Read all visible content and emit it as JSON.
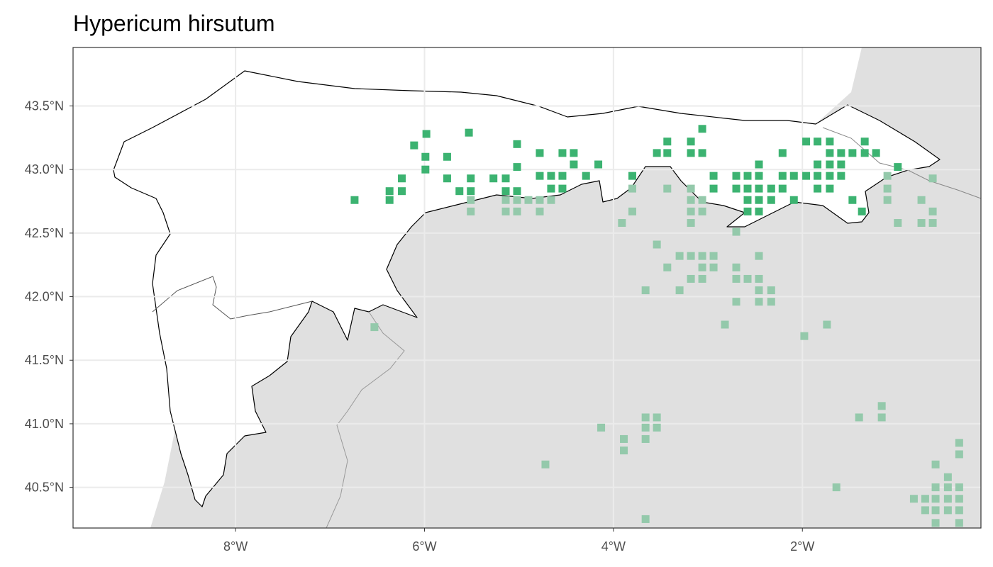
{
  "chart_data": {
    "type": "map",
    "title": "Hypericum hirsutum",
    "xlim": [
      -9.72,
      -0.11
    ],
    "ylim": [
      40.18,
      43.96
    ],
    "xticks": [
      {
        "value": -8,
        "label": "8°W"
      },
      {
        "value": -6,
        "label": "6°W"
      },
      {
        "value": -4,
        "label": "4°W"
      },
      {
        "value": -2,
        "label": "2°W"
      }
    ],
    "yticks": [
      {
        "value": 40.5,
        "label": "40.5°N"
      },
      {
        "value": 41.0,
        "label": "41.0°N"
      },
      {
        "value": 41.5,
        "label": "41.5°N"
      },
      {
        "value": 42.0,
        "label": "42.0°N"
      },
      {
        "value": 42.5,
        "label": "42.5°N"
      },
      {
        "value": 43.0,
        "label": "43.0°N"
      },
      {
        "value": 43.5,
        "label": "43.5°N"
      }
    ],
    "grid": true,
    "series": [
      {
        "color": "#3cb371",
        "x": [
          -6.74,
          -6.37,
          -6.37,
          -6.24,
          -6.24,
          -6.11,
          -5.98,
          -5.99,
          -5.99,
          -5.76,
          -5.76,
          -5.63,
          -5.53,
          -5.51,
          -5.51,
          -5.27,
          -5.14,
          -5.14,
          -5.02,
          -5.02,
          -5.02,
          -4.78,
          -4.78,
          -4.66,
          -4.66,
          -4.54,
          -4.54,
          -4.54,
          -4.42,
          -4.42,
          -4.29,
          -4.16,
          -3.8,
          -3.54,
          -3.43,
          -3.43,
          -3.18,
          -3.18,
          -3.06,
          -3.06,
          -2.94,
          -2.94,
          -2.7,
          -2.7,
          -2.58,
          -2.58,
          -2.58,
          -2.46,
          -2.46,
          -2.46,
          -2.46,
          -2.46,
          -2.58,
          -2.33,
          -2.33,
          -2.21,
          -2.21,
          -2.21,
          -2.09,
          -2.09,
          -1.96,
          -1.96,
          -1.84,
          -1.84,
          -1.84,
          -1.84,
          -1.71,
          -1.71,
          -1.71,
          -1.71,
          -1.71,
          -1.59,
          -1.59,
          -1.59,
          -1.47,
          -1.47,
          -1.34,
          -1.34,
          -1.22,
          -1.37,
          -0.99
        ],
        "y": [
          42.76,
          42.83,
          42.76,
          42.93,
          42.83,
          43.19,
          43.28,
          43.1,
          43.0,
          43.1,
          42.93,
          42.83,
          43.29,
          42.93,
          42.83,
          42.93,
          42.93,
          42.83,
          43.2,
          43.02,
          42.83,
          43.13,
          42.95,
          42.95,
          42.85,
          43.13,
          42.95,
          42.85,
          43.13,
          43.04,
          42.95,
          43.04,
          42.95,
          43.13,
          43.22,
          43.13,
          43.22,
          43.13,
          43.32,
          43.13,
          42.95,
          42.85,
          42.95,
          42.85,
          42.95,
          42.85,
          42.76,
          43.04,
          42.95,
          42.85,
          42.76,
          42.67,
          42.67,
          42.85,
          42.76,
          43.13,
          42.95,
          42.85,
          42.95,
          42.76,
          43.22,
          42.95,
          43.22,
          43.04,
          42.95,
          42.85,
          43.22,
          43.13,
          43.04,
          42.95,
          42.85,
          43.13,
          43.04,
          42.95,
          43.13,
          42.76,
          43.22,
          43.13,
          43.13,
          42.67,
          43.02
        ]
      },
      {
        "color": "#94c9ab",
        "x": [
          -6.53,
          -5.51,
          -5.51,
          -5.14,
          -5.14,
          -5.02,
          -5.02,
          -4.9,
          -4.78,
          -4.78,
          -4.66,
          -3.91,
          -3.8,
          -3.8,
          -3.54,
          -3.43,
          -3.43,
          -3.3,
          -3.3,
          -3.66,
          -3.18,
          -3.18,
          -3.18,
          -3.18,
          -3.18,
          -3.18,
          -3.06,
          -3.06,
          -3.06,
          -3.06,
          -3.06,
          -2.94,
          -2.94,
          -2.7,
          -2.7,
          -2.7,
          -2.7,
          -2.58,
          -2.46,
          -2.46,
          -2.46,
          -2.46,
          -2.33,
          -2.33,
          -2.82,
          -1.98,
          -1.74,
          -1.1,
          -1.1,
          -1.1,
          -0.99,
          -0.74,
          -0.74,
          -0.62,
          -0.62,
          -0.62,
          -3.66,
          -3.54,
          -3.66,
          -3.54,
          -3.66,
          -4.13,
          -3.89,
          -3.89,
          -4.72,
          -3.66,
          -1.4,
          -1.16,
          -1.16,
          -1.64,
          -0.34,
          -0.34,
          -0.59,
          -0.46,
          -0.59,
          -0.46,
          -0.34,
          -0.82,
          -0.7,
          -0.59,
          -0.46,
          -0.34,
          -0.7,
          -0.59,
          -0.46,
          -0.34,
          -0.59,
          -0.34
        ],
        "y": [
          41.76,
          42.76,
          42.67,
          42.76,
          42.67,
          42.76,
          42.67,
          42.76,
          42.76,
          42.67,
          42.76,
          42.58,
          42.85,
          42.67,
          42.41,
          42.85,
          42.23,
          42.32,
          42.05,
          42.05,
          42.85,
          42.76,
          42.67,
          42.58,
          42.32,
          42.14,
          42.76,
          42.67,
          42.32,
          42.23,
          42.14,
          42.32,
          42.23,
          42.51,
          42.23,
          42.14,
          41.96,
          42.14,
          42.32,
          42.14,
          42.05,
          41.96,
          42.05,
          41.96,
          41.78,
          41.69,
          41.78,
          42.95,
          42.85,
          42.76,
          42.58,
          42.76,
          42.58,
          42.93,
          42.67,
          42.58,
          41.05,
          41.05,
          40.97,
          40.97,
          40.88,
          40.97,
          40.88,
          40.79,
          40.68,
          40.25,
          41.05,
          41.14,
          41.05,
          40.5,
          40.85,
          40.76,
          40.68,
          40.58,
          40.5,
          40.5,
          40.5,
          40.41,
          40.41,
          40.41,
          40.41,
          40.41,
          40.32,
          40.32,
          40.32,
          40.32,
          40.22,
          40.22
        ]
      }
    ]
  }
}
